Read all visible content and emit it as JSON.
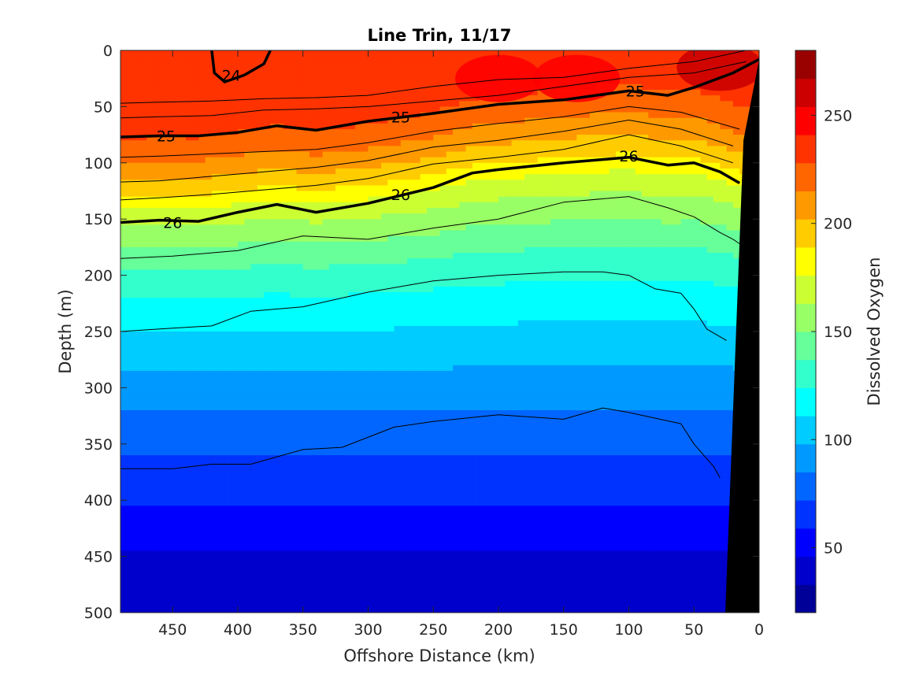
{
  "chart_data": {
    "type": "heatmap",
    "title": "Line Trin, 11/17",
    "xlabel": "Offshore Distance (km)",
    "ylabel": "Depth (m)",
    "colorbar_label": "Dissolved Oxygen",
    "xlim": [
      490,
      0
    ],
    "ylim": [
      0,
      500
    ],
    "x_reversed": true,
    "y_reversed": true,
    "x_ticks": [
      "450",
      "400",
      "350",
      "300",
      "250",
      "200",
      "150",
      "100",
      "50",
      "0"
    ],
    "x_tick_values": [
      450,
      400,
      350,
      300,
      250,
      200,
      150,
      100,
      50,
      0
    ],
    "y_ticks": [
      "0",
      "50",
      "100",
      "150",
      "200",
      "250",
      "300",
      "350",
      "400",
      "450",
      "500"
    ],
    "y_tick_values": [
      0,
      50,
      100,
      150,
      200,
      250,
      300,
      350,
      400,
      450,
      500
    ],
    "colorbar_ticks": [
      "50",
      "100",
      "150",
      "200",
      "250"
    ],
    "colorbar_tick_values": [
      50,
      100,
      150,
      200,
      250
    ],
    "colorbar_range": [
      20,
      280
    ],
    "colormap": "jet",
    "oxygen_profile": {
      "depth": [
        0,
        50,
        70,
        90,
        110,
        130,
        150,
        200,
        250,
        300,
        350,
        400,
        450,
        500
      ],
      "oxygen": [
        235,
        232,
        225,
        210,
        195,
        175,
        160,
        130,
        110,
        92,
        75,
        60,
        45,
        38
      ]
    },
    "oxygen_hotspots": [
      {
        "x": 200,
        "depth": 25,
        "oxygen": 250
      },
      {
        "x": 140,
        "depth": 25,
        "oxygen": 248
      },
      {
        "x": 30,
        "depth": 15,
        "oxygen": 262
      }
    ],
    "isopycnals": [
      {
        "label": "24",
        "bold": true,
        "x": [
          420,
          418,
          410,
          395,
          380,
          375
        ],
        "depth": [
          0,
          20,
          28,
          22,
          12,
          0
        ]
      },
      {
        "label": "25",
        "bold": true,
        "x": [
          490,
          460,
          430,
          400,
          370,
          340,
          300,
          250,
          200,
          150,
          100,
          70,
          50,
          20,
          0
        ],
        "depth": [
          77,
          76,
          76,
          73,
          67,
          71,
          63,
          56,
          48,
          44,
          36,
          40,
          33,
          20,
          8
        ]
      },
      {
        "label": "26",
        "bold": true,
        "x": [
          490,
          460,
          430,
          400,
          370,
          340,
          300,
          250,
          220,
          200,
          150,
          100,
          70,
          50,
          30,
          15
        ],
        "depth": [
          153,
          151,
          152,
          144,
          137,
          144,
          136,
          122,
          109,
          106,
          100,
          95,
          102,
          100,
          108,
          118
        ]
      },
      {
        "label": "",
        "bold": false,
        "x": [
          490,
          450,
          400,
          350,
          300,
          250,
          200,
          150,
          100,
          70,
          50,
          40,
          30,
          20,
          15
        ],
        "depth": [
          185,
          183,
          178,
          165,
          168,
          158,
          150,
          135,
          130,
          140,
          148,
          155,
          162,
          168,
          172
        ]
      },
      {
        "label": "",
        "bold": false,
        "x": [
          490,
          450,
          420,
          390,
          350,
          300,
          250,
          200,
          150,
          120,
          100,
          80,
          60,
          50,
          40,
          25
        ],
        "depth": [
          250,
          247,
          245,
          232,
          228,
          215,
          205,
          200,
          197,
          197,
          200,
          212,
          216,
          230,
          248,
          258
        ]
      },
      {
        "label": "",
        "bold": false,
        "x": [
          490,
          450,
          420,
          390,
          350,
          320,
          280,
          250,
          200,
          150,
          120,
          100,
          80,
          60,
          50,
          35,
          30
        ],
        "depth": [
          372,
          372,
          368,
          368,
          355,
          353,
          335,
          330,
          324,
          328,
          318,
          322,
          327,
          332,
          350,
          370,
          380
        ]
      },
      {
        "label": "",
        "bold": false,
        "x": [
          490,
          460,
          420,
          380,
          340,
          300,
          250,
          200,
          150,
          100,
          50,
          10
        ],
        "depth": [
          47,
          46,
          45,
          43,
          42,
          40,
          32,
          26,
          24,
          16,
          10,
          0
        ]
      },
      {
        "label": "",
        "bold": false,
        "x": [
          490,
          460,
          420,
          380,
          340,
          300,
          250,
          200,
          150,
          100,
          50,
          10
        ],
        "depth": [
          60,
          59,
          58,
          53,
          52,
          50,
          45,
          40,
          32,
          24,
          20,
          10
        ]
      },
      {
        "label": "",
        "bold": false,
        "x": [
          490,
          460,
          420,
          380,
          340,
          300,
          250,
          200,
          150,
          100,
          60,
          15
        ],
        "depth": [
          95,
          94,
          92,
          90,
          88,
          82,
          72,
          65,
          59,
          50,
          55,
          70
        ]
      },
      {
        "label": "",
        "bold": false,
        "x": [
          490,
          460,
          420,
          380,
          340,
          300,
          250,
          200,
          150,
          100,
          60,
          20
        ],
        "depth": [
          117,
          116,
          112,
          108,
          104,
          98,
          86,
          80,
          72,
          62,
          70,
          85
        ]
      },
      {
        "label": "",
        "bold": false,
        "x": [
          490,
          460,
          420,
          380,
          340,
          300,
          250,
          200,
          150,
          100,
          60,
          20
        ],
        "depth": [
          133,
          131,
          128,
          124,
          120,
          114,
          101,
          95,
          88,
          75,
          85,
          100
        ]
      }
    ],
    "bottom_topography": {
      "x": [
        0,
        0,
        26,
        12
      ],
      "depth": [
        8,
        500,
        500,
        80
      ]
    },
    "contour_labels": [
      {
        "text": "24",
        "x": 405,
        "depth": 22
      },
      {
        "text": "25",
        "x": 455,
        "depth": 76
      },
      {
        "text": "25",
        "x": 275,
        "depth": 59
      },
      {
        "text": "25",
        "x": 95,
        "depth": 36
      },
      {
        "text": "26",
        "x": 450,
        "depth": 153
      },
      {
        "text": "26",
        "x": 275,
        "depth": 128
      },
      {
        "text": "26",
        "x": 100,
        "depth": 94
      }
    ]
  }
}
